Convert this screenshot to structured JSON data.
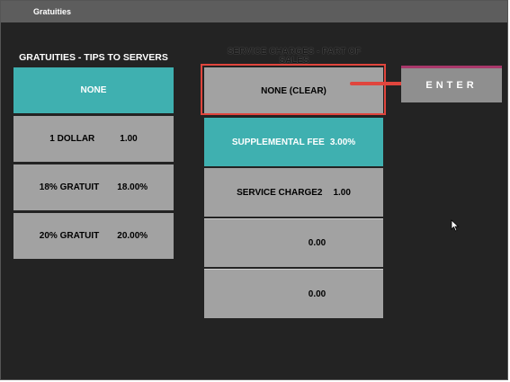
{
  "window": {
    "title": "Gratuities"
  },
  "gratuities": {
    "heading": "GRATUITIES - TIPS TO SERVERS",
    "items": [
      {
        "label": "NONE",
        "amount": ""
      },
      {
        "label": "1 DOLLAR",
        "amount": "1.00"
      },
      {
        "label": "18% GRATUIT",
        "amount": "18.00%"
      },
      {
        "label": "20% GRATUIT",
        "amount": "20.00%"
      }
    ]
  },
  "service_charges": {
    "heading": "SERVICE CHARGES - PART OF SALES",
    "items": [
      {
        "label": "NONE (CLEAR)",
        "amount": ""
      },
      {
        "label": "SUPPLEMENTAL FEE",
        "amount": "3.00%"
      },
      {
        "label": "SERVICE CHARGE2",
        "amount": "1.00"
      },
      {
        "label": "",
        "amount": "0.00"
      },
      {
        "label": "",
        "amount": "0.00"
      }
    ]
  },
  "enter_button": {
    "label": "ENTER"
  },
  "colors": {
    "selected": "#3fb0b0",
    "tile": "#a2a2a2",
    "background": "#232323",
    "highlight": "#e0453d",
    "enter_accent": "#a8386a"
  }
}
